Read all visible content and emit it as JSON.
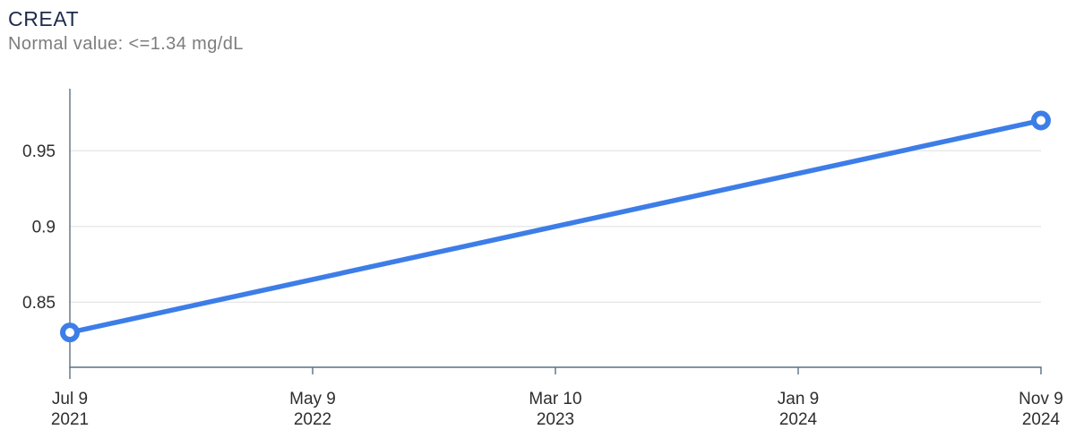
{
  "header": {
    "title": "CREAT",
    "subtitle": "Normal value: <=1.34 mg/dL"
  },
  "chart_data": {
    "type": "line",
    "title": "CREAT",
    "subtitle": "Normal value: <=1.34 mg/dL",
    "unit": "mg/dL",
    "normal_value": "<=1.34 mg/dL",
    "series": [
      {
        "name": "CREAT",
        "points": [
          {
            "date": "Jul 9 2021",
            "value": 0.83,
            "tick_index": 0
          },
          {
            "date": "Nov 9 2024",
            "value": 0.97,
            "tick_index": 4
          }
        ]
      }
    ],
    "x_tick_labels": [
      [
        "Jul 9",
        "2021"
      ],
      [
        "May 9",
        "2022"
      ],
      [
        "Mar 10",
        "2023"
      ],
      [
        "Jan 9",
        "2024"
      ],
      [
        "Nov 9",
        "2024"
      ]
    ],
    "y_ticks": [
      0.85,
      0.9,
      0.95
    ],
    "ylim": [
      0.807,
      0.991
    ],
    "grid": "horizontal",
    "legend": "none"
  },
  "colors": {
    "line": "#3d7de8",
    "marker_fill": "#ffffff",
    "axis": "#5b7083",
    "grid": "#e7e7e7",
    "axis_label": "#2e2e2e",
    "title": "#1d2b4a",
    "subtitle": "#7d7d7d"
  }
}
